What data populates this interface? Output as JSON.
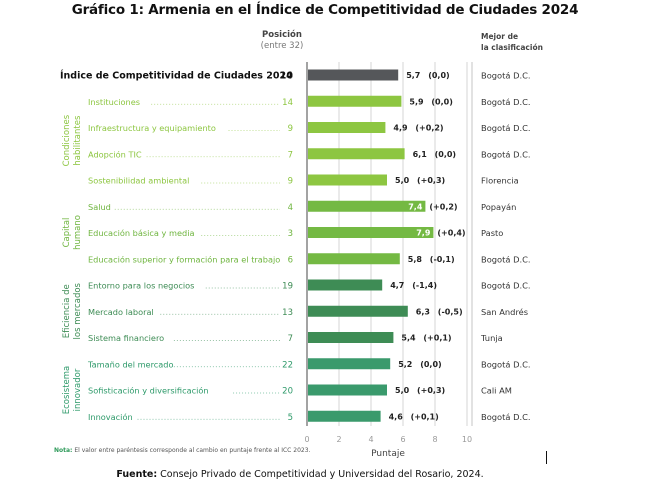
{
  "title": "Gráfico 1: Armenia en el Índice de Competitividad de Ciudades 2024",
  "headers": {
    "position_line1": "Posición",
    "position_line2": "(entre 32)",
    "best_line1": "Mejor de",
    "best_line2": "la clasificación"
  },
  "note_label": "Nota:",
  "note_text": " El valor entre paréntesis corresponde al cambio en puntaje frente al ICC 2023.",
  "source_label": "Fuente:",
  "source_text": " Consejo Privado de Competitividad y Universidad del Rosario, 2024.",
  "colors": {
    "overall": "#55575a",
    "condiciones": "#8dc641",
    "capital": "#74b943",
    "eficiencia": "#3e8c55",
    "ecosistema": "#3a9a6c",
    "condiciones_text": "#8dc641",
    "capital_text": "#6fb53f",
    "eficiencia_text": "#3e8c55",
    "ecosistema_text": "#2e9a6a"
  },
  "chart_data": {
    "type": "bar",
    "orientation": "horizontal",
    "title": "Gráfico 1: Armenia en el Índice de Competitividad de Ciudades 2024",
    "xlabel": "Puntaje",
    "xlim": [
      0,
      10
    ],
    "xticks": [
      "0",
      "2",
      "4",
      "6",
      "8",
      "10"
    ],
    "grid": true,
    "groups": [
      {
        "key": "condiciones",
        "name_line1": "Condiciones",
        "name_line2": "habilitantes"
      },
      {
        "key": "capital",
        "name_line1": "Capital",
        "name_line2": "humano"
      },
      {
        "key": "eficiencia",
        "name_line1": "Eficiencia de",
        "name_line2": "los mercados"
      },
      {
        "key": "ecosistema",
        "name_line1": "Ecosistema",
        "name_line2": "innovador"
      }
    ],
    "rows": [
      {
        "label": "Índice de Competitividad de Ciudades 2024",
        "group": "overall",
        "position": "10",
        "score": 5.7,
        "score_label": "5,7",
        "change": "(0,0)",
        "best": "Bogotá D.C."
      },
      {
        "label": "Instituciones",
        "group": "condiciones",
        "position": "14",
        "score": 5.9,
        "score_label": "5,9",
        "change": "(0,0)",
        "best": "Bogotá D.C."
      },
      {
        "label": "Infraestructura y equipamiento",
        "group": "condiciones",
        "position": "9",
        "score": 4.9,
        "score_label": "4,9",
        "change": "(+0,2)",
        "best": "Bogotá D.C."
      },
      {
        "label": "Adopción TIC",
        "group": "condiciones",
        "position": "7",
        "score": 6.1,
        "score_label": "6,1",
        "change": "(0,0)",
        "best": "Bogotá D.C."
      },
      {
        "label": "Sostenibilidad ambiental",
        "group": "condiciones",
        "position": "9",
        "score": 5.0,
        "score_label": "5,0",
        "change": "(+0,3)",
        "best": "Florencia"
      },
      {
        "label": "Salud",
        "group": "capital",
        "position": "4",
        "score": 7.4,
        "score_label": "7,4",
        "change": "(+0,2)",
        "best": "Popayán",
        "label_inside": true
      },
      {
        "label": "Educación básica y media",
        "group": "capital",
        "position": "3",
        "score": 7.9,
        "score_label": "7,9",
        "change": "(+0,4)",
        "best": "Pasto",
        "label_inside": true
      },
      {
        "label": "Educación superior y formación para el trabajo",
        "group": "capital",
        "position": "6",
        "score": 5.8,
        "score_label": "5,8",
        "change": "(-0,1)",
        "best": "Bogotá D.C."
      },
      {
        "label": "Entorno para los negocios",
        "group": "eficiencia",
        "position": "19",
        "score": 4.7,
        "score_label": "4,7",
        "change": "(-1,4)",
        "best": "Bogotá D.C."
      },
      {
        "label": "Mercado laboral",
        "group": "eficiencia",
        "position": "13",
        "score": 6.3,
        "score_label": "6,3",
        "change": "(-0,5)",
        "best": "San Andrés"
      },
      {
        "label": "Sistema financiero",
        "group": "eficiencia",
        "position": "7",
        "score": 5.4,
        "score_label": "5,4",
        "change": "(+0,1)",
        "best": "Tunja"
      },
      {
        "label": "Tamaño del mercado",
        "group": "ecosistema",
        "position": "22",
        "score": 5.2,
        "score_label": "5,2",
        "change": "(0,0)",
        "best": "Bogotá D.C."
      },
      {
        "label": "Sofisticación y diversificación",
        "group": "ecosistema",
        "position": "20",
        "score": 5.0,
        "score_label": "5,0",
        "change": "(+0,3)",
        "best": "Cali AM"
      },
      {
        "label": "Innovación",
        "group": "ecosistema",
        "position": "5",
        "score": 4.6,
        "score_label": "4,6",
        "change": "(+0,1)",
        "best": "Bogotá D.C."
      }
    ]
  }
}
